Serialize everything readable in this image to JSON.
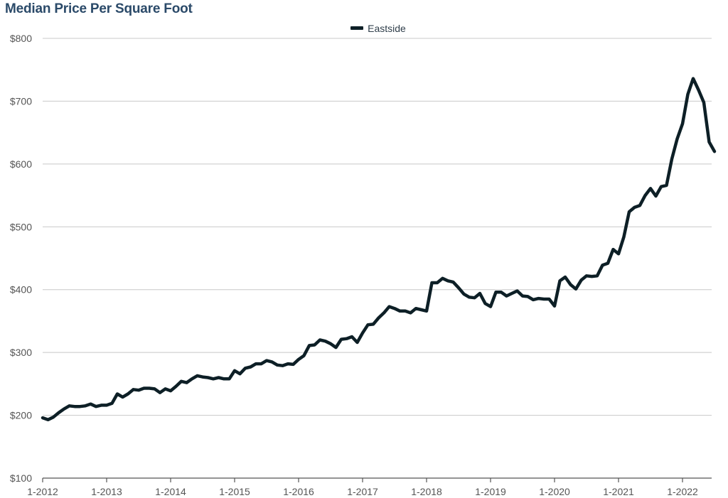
{
  "chart_data": {
    "type": "line",
    "title": "Median Price Per Square Foot",
    "xlabel": "",
    "ylabel": "",
    "ylim": [
      100,
      800
    ],
    "yticks": [
      {
        "value": 100,
        "label": "$100"
      },
      {
        "value": 200,
        "label": "$200"
      },
      {
        "value": 300,
        "label": "$300"
      },
      {
        "value": 400,
        "label": "$400"
      },
      {
        "value": 500,
        "label": "$500"
      },
      {
        "value": 600,
        "label": "$600"
      },
      {
        "value": 700,
        "label": "$700"
      },
      {
        "value": 800,
        "label": "$800"
      }
    ],
    "xticks": [
      "1-2012",
      "1-2013",
      "1-2014",
      "1-2015",
      "1-2016",
      "1-2017",
      "1-2018",
      "1-2019",
      "1-2020",
      "1-2021",
      "1-2022"
    ],
    "x_start": "1-2012",
    "x_frequency": "monthly",
    "grid": true,
    "legend_position": "top",
    "series": [
      {
        "name": "Eastside",
        "color": "#0d1f26",
        "values": [
          196,
          193,
          197,
          204,
          210,
          215,
          214,
          214,
          215,
          218,
          214,
          216,
          216,
          219,
          234,
          229,
          234,
          241,
          240,
          243,
          243,
          242,
          236,
          242,
          239,
          246,
          254,
          252,
          258,
          263,
          261,
          260,
          258,
          260,
          258,
          258,
          271,
          266,
          275,
          277,
          282,
          282,
          287,
          285,
          280,
          279,
          282,
          281,
          289,
          295,
          311,
          312,
          320,
          318,
          314,
          308,
          321,
          322,
          325,
          316,
          331,
          344,
          345,
          355,
          363,
          373,
          370,
          366,
          366,
          363,
          370,
          368,
          366,
          411,
          411,
          418,
          414,
          412,
          403,
          393,
          388,
          387,
          394,
          378,
          373,
          396,
          396,
          390,
          394,
          398,
          390,
          389,
          384,
          386,
          385,
          385,
          374,
          414,
          420,
          408,
          401,
          415,
          422,
          421,
          422,
          439,
          442,
          464,
          457,
          484,
          524,
          531,
          534,
          550,
          561,
          549,
          564,
          566,
          608,
          640,
          664,
          711,
          736,
          718,
          698,
          635,
          620
        ]
      }
    ]
  }
}
